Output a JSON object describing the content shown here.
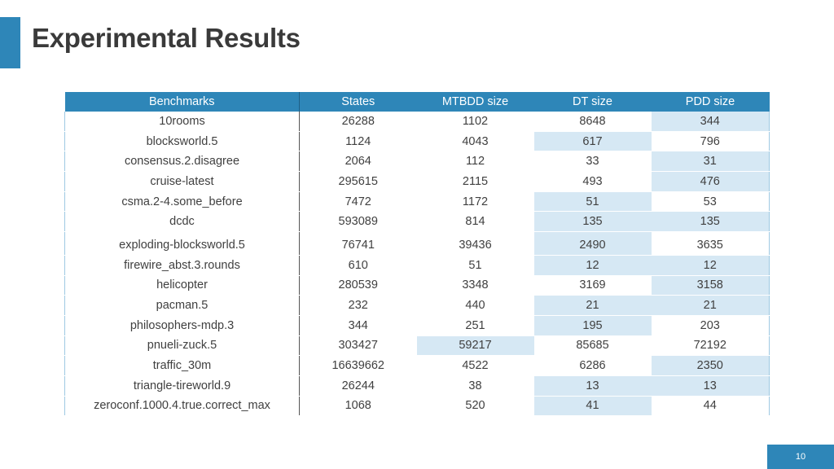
{
  "slide": {
    "title": "Experimental Results",
    "page_number": "10"
  },
  "table": {
    "headers": [
      "Benchmarks",
      "States",
      "MTBDD size",
      "DT size",
      "PDD size"
    ],
    "rows": [
      [
        "10rooms",
        "26288",
        "1102",
        "8648",
        "344"
      ],
      [
        "blocksworld.5",
        "1124",
        "4043",
        "617",
        "796"
      ],
      [
        "consensus.2.disagree",
        "2064",
        "112",
        "33",
        "31"
      ],
      [
        "cruise-latest",
        "295615",
        "2115",
        "493",
        "476"
      ],
      [
        "csma.2-4.some_before",
        "7472",
        "1172",
        "51",
        "53"
      ],
      [
        "dcdc",
        "593089",
        "814",
        "135",
        "135"
      ],
      [
        "exploding-blocksworld.5",
        "76741",
        "39436",
        "2490",
        "3635"
      ],
      [
        "firewire_abst.3.rounds",
        "610",
        "51",
        "12",
        "12"
      ],
      [
        "helicopter",
        "280539",
        "3348",
        "3169",
        "3158"
      ],
      [
        "pacman.5",
        "232",
        "440",
        "21",
        "21"
      ],
      [
        "philosophers-mdp.3",
        "344",
        "251",
        "195",
        "203"
      ],
      [
        "pnueli-zuck.5",
        "303427",
        "59217",
        "85685",
        "72192"
      ],
      [
        "traffic_30m",
        "16639662",
        "4522",
        "6286",
        "2350"
      ],
      [
        "triangle-tireworld.9",
        "26244",
        "38",
        "13",
        "13"
      ],
      [
        "zeroconf.1000.4.true.correct_max",
        "1068",
        "520",
        "41",
        "44"
      ]
    ],
    "highlighted_cells": [
      [
        0,
        4
      ],
      [
        1,
        3
      ],
      [
        2,
        4
      ],
      [
        3,
        4
      ],
      [
        4,
        3
      ],
      [
        5,
        3
      ],
      [
        5,
        4
      ],
      [
        6,
        3
      ],
      [
        7,
        3
      ],
      [
        7,
        4
      ],
      [
        8,
        4
      ],
      [
        9,
        3
      ],
      [
        9,
        4
      ],
      [
        10,
        3
      ],
      [
        11,
        2
      ],
      [
        12,
        4
      ],
      [
        13,
        3
      ],
      [
        13,
        4
      ],
      [
        14,
        3
      ]
    ],
    "colors": {
      "header_bg": "#2e86b8",
      "highlight_bg": "#d6e8f4"
    }
  }
}
